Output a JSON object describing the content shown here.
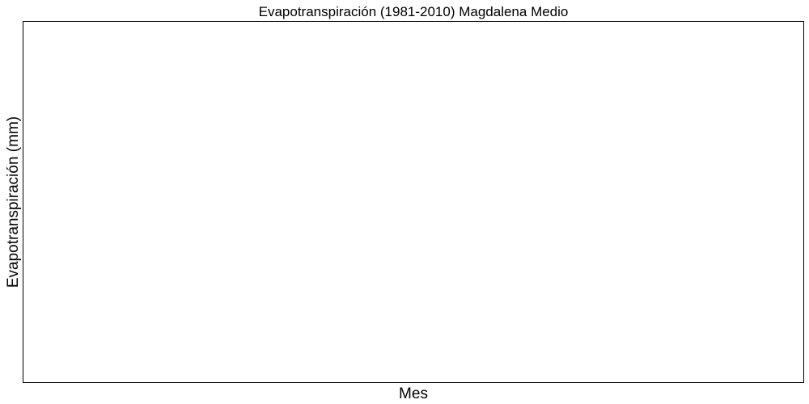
{
  "chart_data": {
    "type": "line",
    "title": "Evapotranspiración (1981-2010)  Magdalena Medio",
    "xlabel": "Mes",
    "ylabel": "Evapotranspiración  (mm)",
    "categories": [],
    "series": [],
    "grid": false
  }
}
